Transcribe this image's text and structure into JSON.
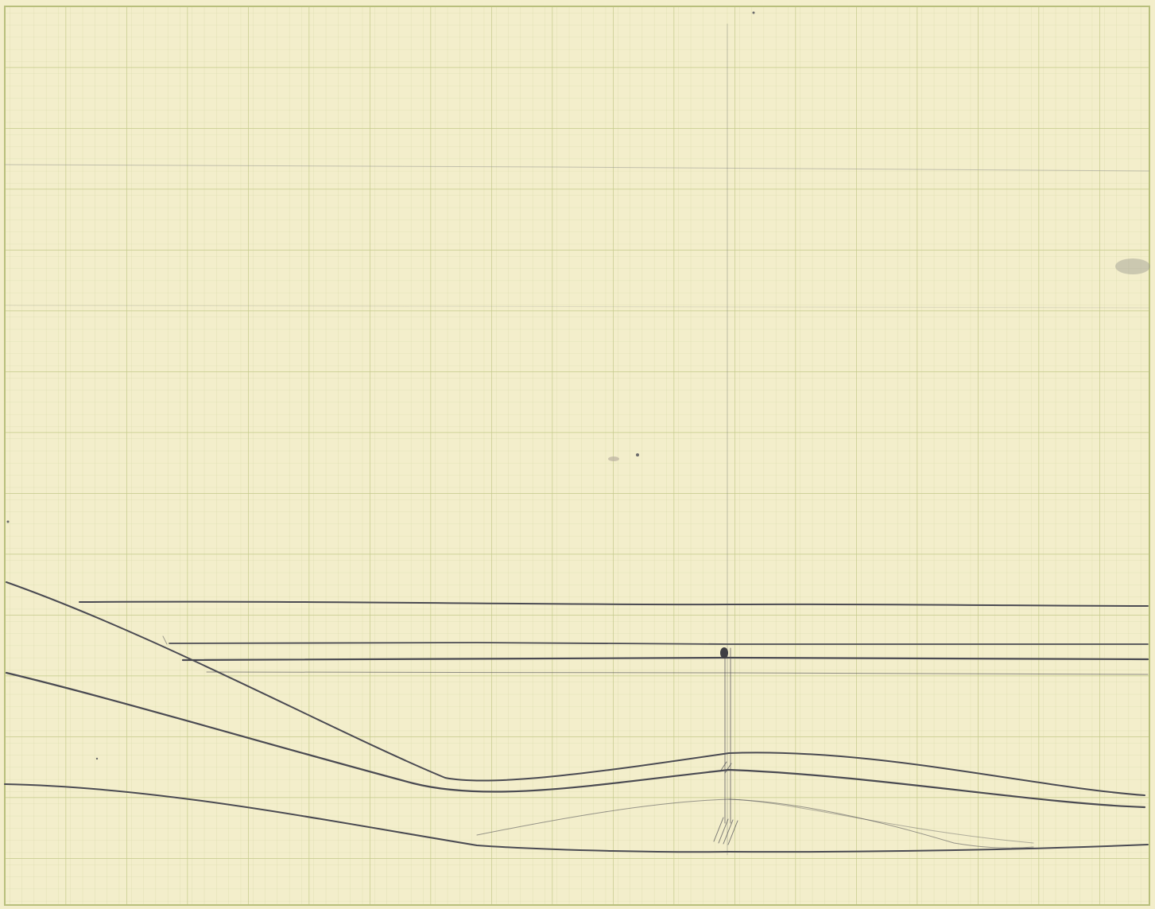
{
  "sheet": {
    "paper_color": "#f3eecb",
    "grid_color": "#c9cf96",
    "pencil_color": "#4a4a52"
  }
}
